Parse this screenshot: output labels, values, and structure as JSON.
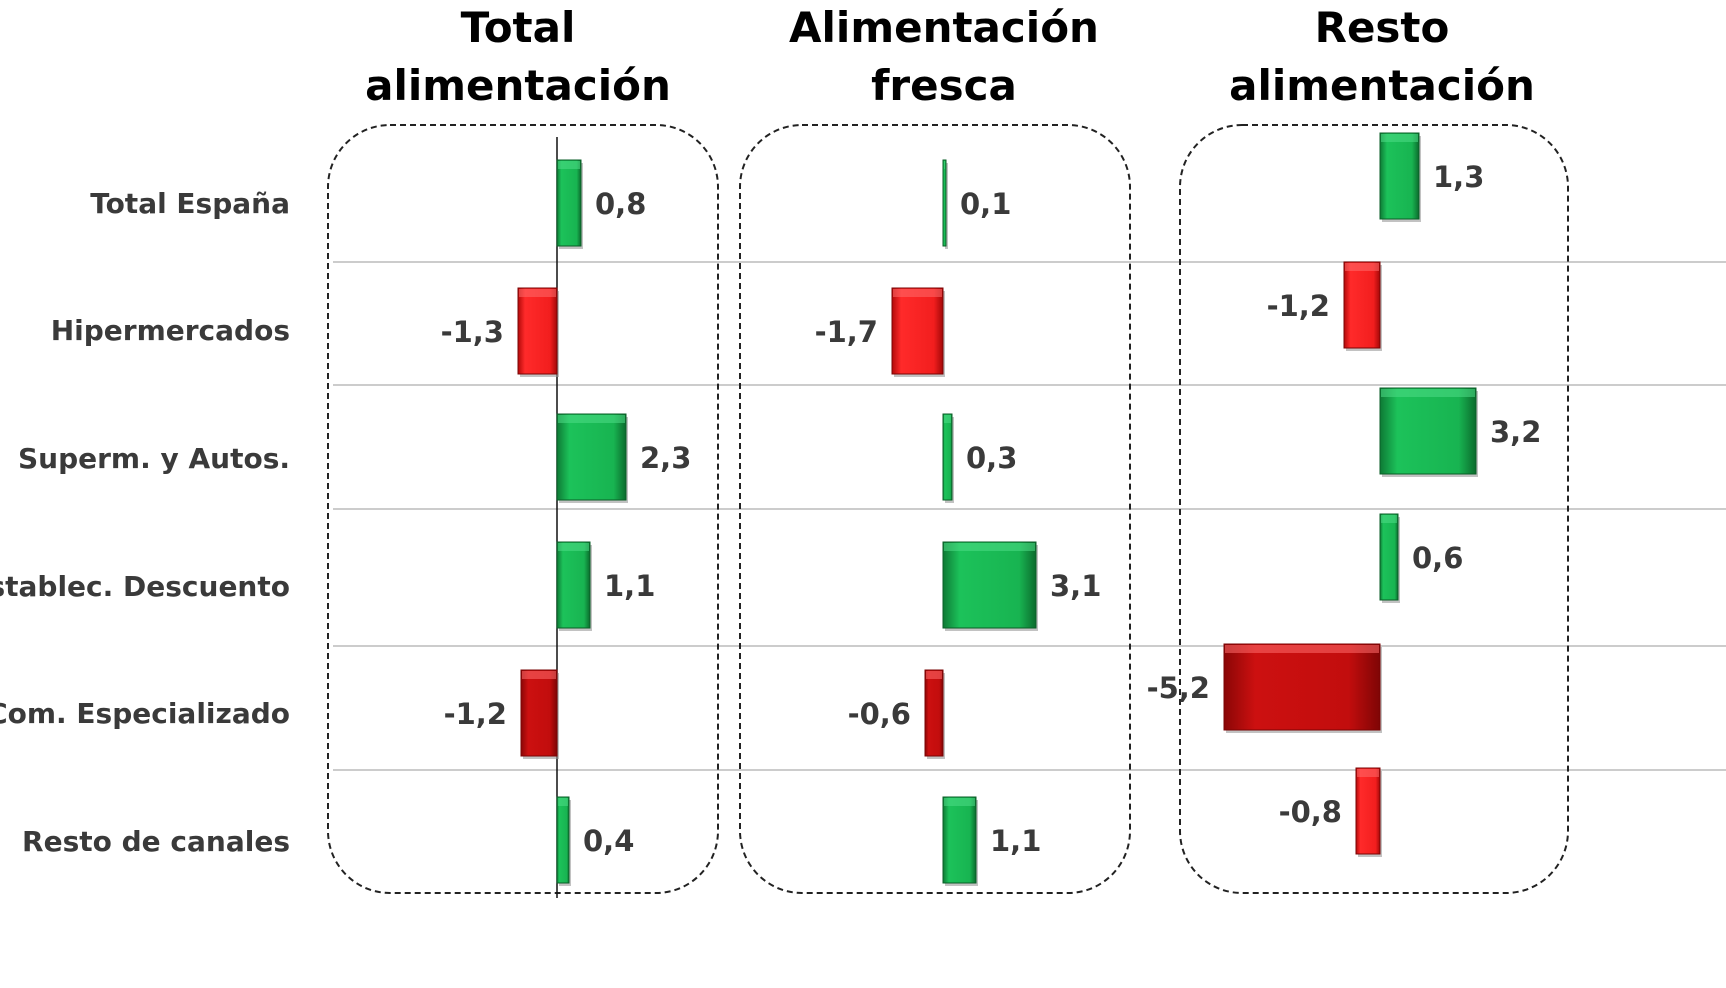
{
  "chart_data": {
    "type": "bar",
    "orientation": "horizontal",
    "categories": [
      "Total España",
      "Hipermercados",
      "Superm. y Autos.",
      "Establec. Descuento",
      "Com. Especializado",
      "Resto de canales"
    ],
    "panels": [
      {
        "title_lines": [
          "Total",
          "alimentación"
        ],
        "values": [
          0.8,
          -1.3,
          2.3,
          1.1,
          -1.2,
          0.4
        ],
        "labels": [
          "0,8",
          "-1,3",
          "2,3",
          "1,1",
          "-1,2",
          "0,4"
        ]
      },
      {
        "title_lines": [
          "Alimentación",
          "fresca"
        ],
        "values": [
          0.1,
          -1.7,
          0.3,
          3.1,
          -0.6,
          1.1
        ],
        "labels": [
          "0,1",
          "-1,7",
          "0,3",
          "3,1",
          "-0,6",
          "1,1"
        ]
      },
      {
        "title_lines": [
          "Resto",
          "alimentación"
        ],
        "values": [
          1.3,
          -1.2,
          3.2,
          0.6,
          -5.2,
          -0.8
        ],
        "labels": [
          "1,3",
          "-1,2",
          "3,2",
          "0,6",
          "-5,2",
          "-0,8"
        ]
      }
    ],
    "colors": {
      "positive": "#17b04f",
      "positive_dark": "#0f7a36",
      "negative": "#ee1c1c",
      "negative_dark": "#b00b0b",
      "separator": "#bbbbbb",
      "box_border": "#222222"
    },
    "legend": "none",
    "grid": false
  }
}
